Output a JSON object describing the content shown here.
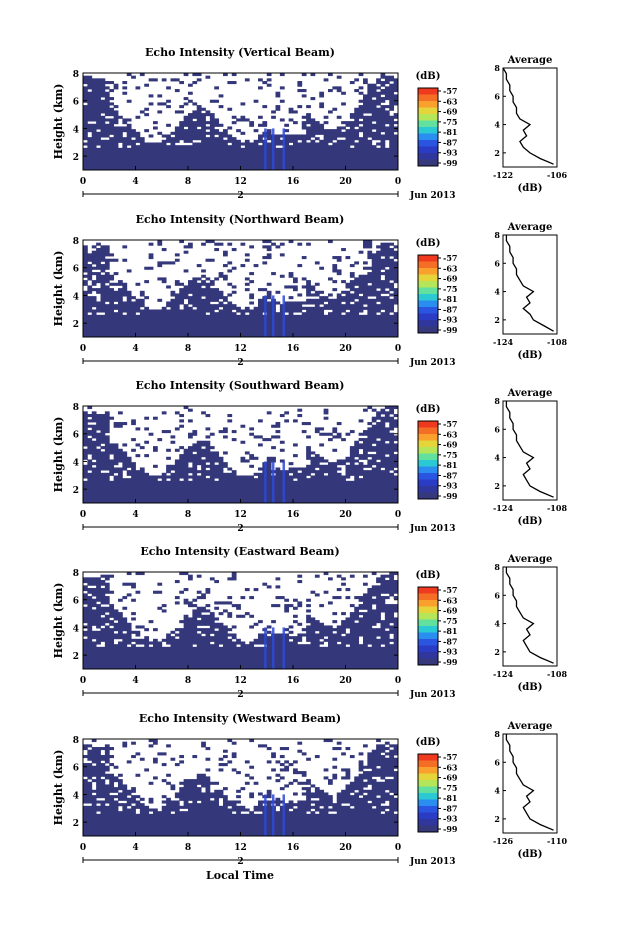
{
  "footer_xlabel": "Local Time",
  "colorbar": {
    "unit": "(dB)",
    "ticks": [
      "-57",
      "-63",
      "-69",
      "-75",
      "-81",
      "-87",
      "-93",
      "-99"
    ],
    "colors": [
      "#f03a20",
      "#f46e26",
      "#f9a12c",
      "#e5d53b",
      "#b5e65a",
      "#62e09e",
      "#2bc9d4",
      "#2a8ef0",
      "#2a55e0",
      "#2b3cc4",
      "#30379c",
      "#35387a"
    ]
  },
  "colors": {
    "echo_fill": "#34387a",
    "echo_blue": "#2e49d6",
    "profile_line": "#000000"
  },
  "chart_data": [
    {
      "type": "heatmap",
      "title": "Echo Intensity (Vertical Beam)",
      "ylabel": "Height (km)",
      "xlim": [
        0,
        24
      ],
      "ylim": [
        1,
        8
      ],
      "xticks": [
        "0",
        "4",
        "8",
        "12",
        "16",
        "20",
        "0"
      ],
      "yticks": [
        "2",
        "4",
        "6",
        "8"
      ],
      "date_label": "Jun 2013",
      "date_tick": "2",
      "profile": {
        "title": "Average",
        "xlabel": "(dB)",
        "xticks": [
          "-122",
          "-106"
        ],
        "xlim": [
          -122,
          -106
        ],
        "yticks": [
          "2",
          "4",
          "6",
          "8"
        ],
        "h": [
          1.2,
          1.6,
          2.0,
          2.4,
          2.8,
          3.2,
          3.6,
          4.0,
          4.4,
          4.8,
          5.2,
          5.6,
          6.0,
          6.4,
          6.8,
          7.2,
          7.6,
          8.0
        ],
        "db": [
          -107,
          -111,
          -114,
          -116,
          -117,
          -115,
          -116,
          -114,
          -117,
          -118,
          -118,
          -119,
          -119,
          -120,
          -120,
          -121,
          -121,
          -122
        ]
      }
    },
    {
      "type": "heatmap",
      "title": "Echo Intensity (Northward Beam)",
      "ylabel": "Height (km)",
      "xlim": [
        0,
        24
      ],
      "ylim": [
        1,
        8
      ],
      "xticks": [
        "0",
        "4",
        "8",
        "12",
        "16",
        "20",
        "0"
      ],
      "yticks": [
        "2",
        "4",
        "6",
        "8"
      ],
      "date_label": "Jun 2013",
      "date_tick": "2",
      "profile": {
        "title": "Average",
        "xlabel": "(dB)",
        "xticks": [
          "-124",
          "-108"
        ],
        "xlim": [
          -124,
          -108
        ],
        "yticks": [
          "2",
          "4",
          "6",
          "8"
        ],
        "h": [
          1.2,
          1.6,
          2.0,
          2.4,
          2.8,
          3.2,
          3.6,
          4.0,
          4.4,
          4.8,
          5.2,
          5.6,
          6.0,
          6.4,
          6.8,
          7.2,
          7.6,
          8.0
        ],
        "db": [
          -109,
          -112,
          -115,
          -116,
          -118,
          -116,
          -117,
          -115,
          -118,
          -119,
          -120,
          -120,
          -121,
          -121,
          -122,
          -122,
          -123,
          -123
        ]
      }
    },
    {
      "type": "heatmap",
      "title": "Echo Intensity (Southward Beam)",
      "ylabel": "Height (km)",
      "xlim": [
        0,
        24
      ],
      "ylim": [
        1,
        8
      ],
      "xticks": [
        "0",
        "4",
        "8",
        "12",
        "16",
        "20",
        "0"
      ],
      "yticks": [
        "2",
        "4",
        "6",
        "8"
      ],
      "date_label": "Jun 2013",
      "date_tick": "2",
      "profile": {
        "title": "Average",
        "xlabel": "(dB)",
        "xticks": [
          "-124",
          "-108"
        ],
        "xlim": [
          -124,
          -108
        ],
        "yticks": [
          "2",
          "4",
          "6",
          "8"
        ],
        "h": [
          1.2,
          1.6,
          2.0,
          2.4,
          2.8,
          3.2,
          3.6,
          4.0,
          4.4,
          4.8,
          5.2,
          5.6,
          6.0,
          6.4,
          6.8,
          7.2,
          7.6,
          8.0
        ],
        "db": [
          -109,
          -113,
          -116,
          -117,
          -118,
          -116,
          -117,
          -115,
          -118,
          -119,
          -120,
          -120,
          -121,
          -121,
          -122,
          -122,
          -123,
          -123
        ]
      }
    },
    {
      "type": "heatmap",
      "title": "Echo Intensity (Eastward Beam)",
      "ylabel": "Height (km)",
      "xlim": [
        0,
        24
      ],
      "ylim": [
        1,
        8
      ],
      "xticks": [
        "0",
        "4",
        "8",
        "12",
        "16",
        "20",
        "0"
      ],
      "yticks": [
        "2",
        "4",
        "6",
        "8"
      ],
      "date_label": "Jun 2013",
      "date_tick": "2",
      "profile": {
        "title": "Average",
        "xlabel": "(dB)",
        "xticks": [
          "-124",
          "-108"
        ],
        "xlim": [
          -124,
          -108
        ],
        "yticks": [
          "2",
          "4",
          "6",
          "8"
        ],
        "h": [
          1.2,
          1.6,
          2.0,
          2.4,
          2.8,
          3.2,
          3.6,
          4.0,
          4.4,
          4.8,
          5.2,
          5.6,
          6.0,
          6.4,
          6.8,
          7.2,
          7.6,
          8.0
        ],
        "db": [
          -109,
          -113,
          -116,
          -117,
          -118,
          -116,
          -117,
          -115,
          -118,
          -119,
          -120,
          -120,
          -121,
          -121,
          -122,
          -122,
          -123,
          -123
        ]
      }
    },
    {
      "type": "heatmap",
      "title": "Echo Intensity (Westward Beam)",
      "ylabel": "Height (km)",
      "xlim": [
        0,
        24
      ],
      "ylim": [
        1,
        8
      ],
      "xticks": [
        "0",
        "4",
        "8",
        "12",
        "16",
        "20",
        "0"
      ],
      "yticks": [
        "2",
        "4",
        "6",
        "8"
      ],
      "date_label": "Jun 2013",
      "date_tick": "2",
      "profile": {
        "title": "Average",
        "xlabel": "(dB)",
        "xticks": [
          "-126",
          "-110"
        ],
        "xlim": [
          -126,
          -110
        ],
        "yticks": [
          "2",
          "4",
          "6",
          "8"
        ],
        "h": [
          1.2,
          1.6,
          2.0,
          2.4,
          2.8,
          3.2,
          3.6,
          4.0,
          4.4,
          4.8,
          5.2,
          5.6,
          6.0,
          6.4,
          6.8,
          7.2,
          7.6,
          8.0
        ],
        "db": [
          -111,
          -115,
          -118,
          -119,
          -120,
          -118,
          -119,
          -117,
          -120,
          -121,
          -122,
          -122,
          -123,
          -123,
          -124,
          -124,
          -125,
          -125
        ]
      }
    }
  ]
}
